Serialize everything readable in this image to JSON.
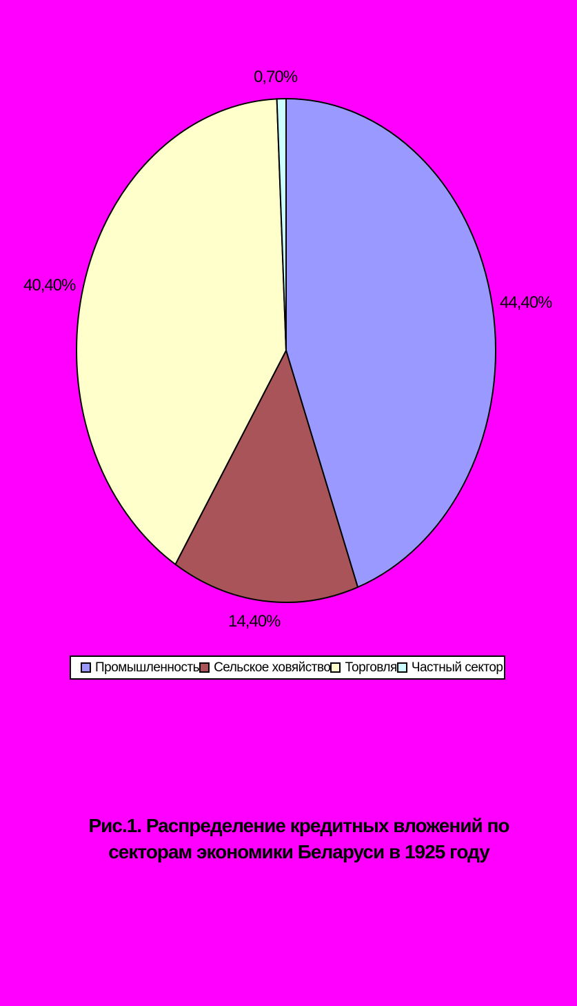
{
  "page": {
    "background_color": "#FF00FF"
  },
  "chart_data": {
    "type": "pie",
    "title": "Рис.1. Распределение кредитных вложений по секторам экономики Беларуси в 1925 году",
    "shape": "ellipse",
    "start_angle_deg": 0,
    "direction": "clockwise",
    "legend_position": "bottom",
    "slices": [
      {
        "name": "Промышленность",
        "value": 44.4,
        "label": "44,40%",
        "color": "#9999FF"
      },
      {
        "name": "Сельское ховяйство",
        "value": 14.4,
        "label": "14,40%",
        "color": "#A85458"
      },
      {
        "name": "Торговля",
        "value": 40.4,
        "label": "40,40%",
        "color": "#FFFFCC"
      },
      {
        "name": "Частный сектор",
        "value": 0.7,
        "label": "0,70%",
        "color": "#CCFFFF"
      }
    ],
    "outline_color": "#000000"
  },
  "caption": {
    "line1": "Рис.1. Распределение кредитных вложений по",
    "line2": "секторам экономики Беларуси в 1925 году"
  }
}
